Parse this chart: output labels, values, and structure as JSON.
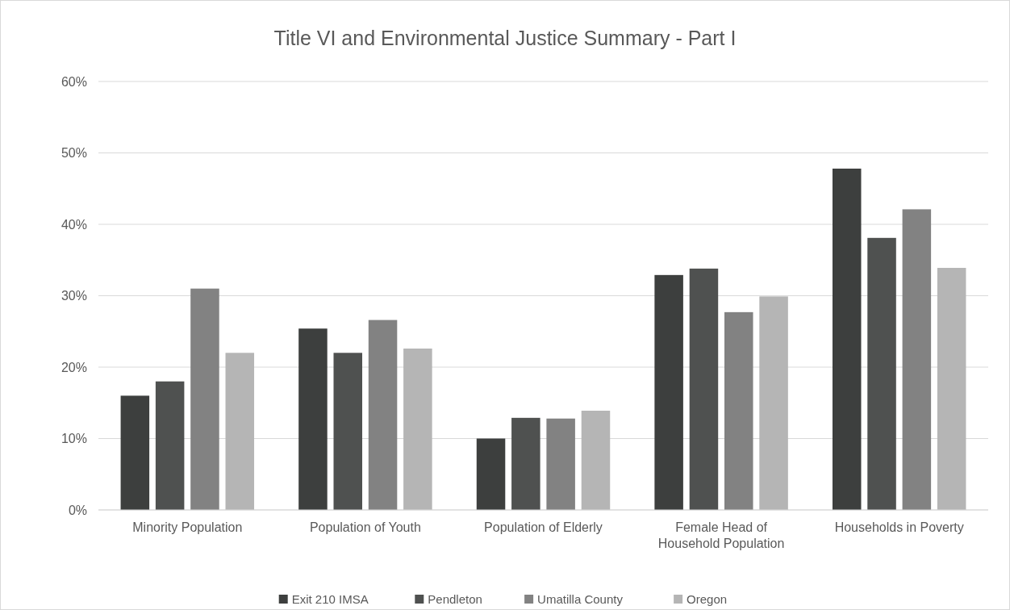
{
  "chart_data": {
    "type": "bar",
    "title": "Title VI and Environmental Justice Summary - Part I",
    "categories": [
      "Minority Population",
      "Population of Youth",
      "Population of Elderly",
      "Female Head of Household Population",
      "Households in Poverty"
    ],
    "series": [
      {
        "name": "Exit 210 IMSA",
        "color": "#3d3f3e",
        "values": [
          16,
          25.4,
          10,
          32.9,
          47.8
        ]
      },
      {
        "name": "Pendleton",
        "color": "#4f5150",
        "values": [
          18,
          22,
          12.9,
          33.8,
          38.1
        ]
      },
      {
        "name": "Umatilla County",
        "color": "#828282",
        "values": [
          31,
          26.6,
          12.8,
          27.7,
          42.1
        ]
      },
      {
        "name": "Oregon",
        "color": "#b5b5b5",
        "values": [
          22,
          22.6,
          13.9,
          29.9,
          33.9
        ]
      }
    ],
    "ylim": [
      0,
      60
    ],
    "yticks": [
      {
        "value": 0,
        "label": "0%"
      },
      {
        "value": 10,
        "label": "10%"
      },
      {
        "value": 20,
        "label": "20%"
      },
      {
        "value": 30,
        "label": "30%"
      },
      {
        "value": 40,
        "label": "40%"
      },
      {
        "value": 50,
        "label": "50%"
      },
      {
        "value": 60,
        "label": "60%"
      }
    ],
    "grid": "y",
    "legend": "bottom"
  }
}
